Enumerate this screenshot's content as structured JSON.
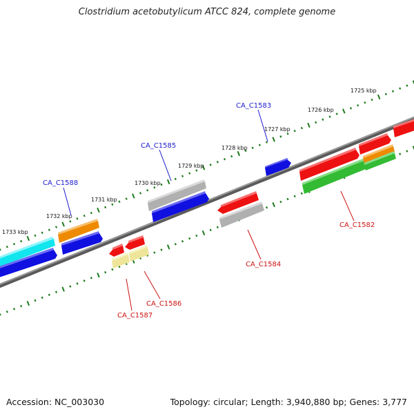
{
  "title": "Clostridium acetobutylicum ATCC 824, complete genome",
  "footer": {
    "accession": "Accession: NC_003030",
    "stats": "Topology: circular; Length: 3,940,880 bp; Genes: 3,777"
  },
  "ticks": [
    "1725 kbp",
    "1726 kbp",
    "1727 kbp",
    "1728 kbp",
    "1729 kbp",
    "1730 kbp",
    "1731 kbp",
    "1732 kbp",
    "1733 kbp"
  ],
  "colors": {
    "backbone": "#808080",
    "tick": "#1b7a1b",
    "forward_label": "#1a1acc",
    "reverse_label": "#cc1111",
    "blue": "#1010e0",
    "red": "#ee1111",
    "grey": "#b0b0b0",
    "cyan": "#11e5ee",
    "orange": "#ee8a00",
    "green": "#33bb33",
    "khaki": "#eee59a"
  },
  "gene_labels": {
    "forward": [
      "CA_C1583",
      "CA_C1585",
      "CA_C1588"
    ],
    "reverse": [
      "CA_C1582",
      "CA_C1584",
      "CA_C1586",
      "CA_C1587"
    ]
  }
}
